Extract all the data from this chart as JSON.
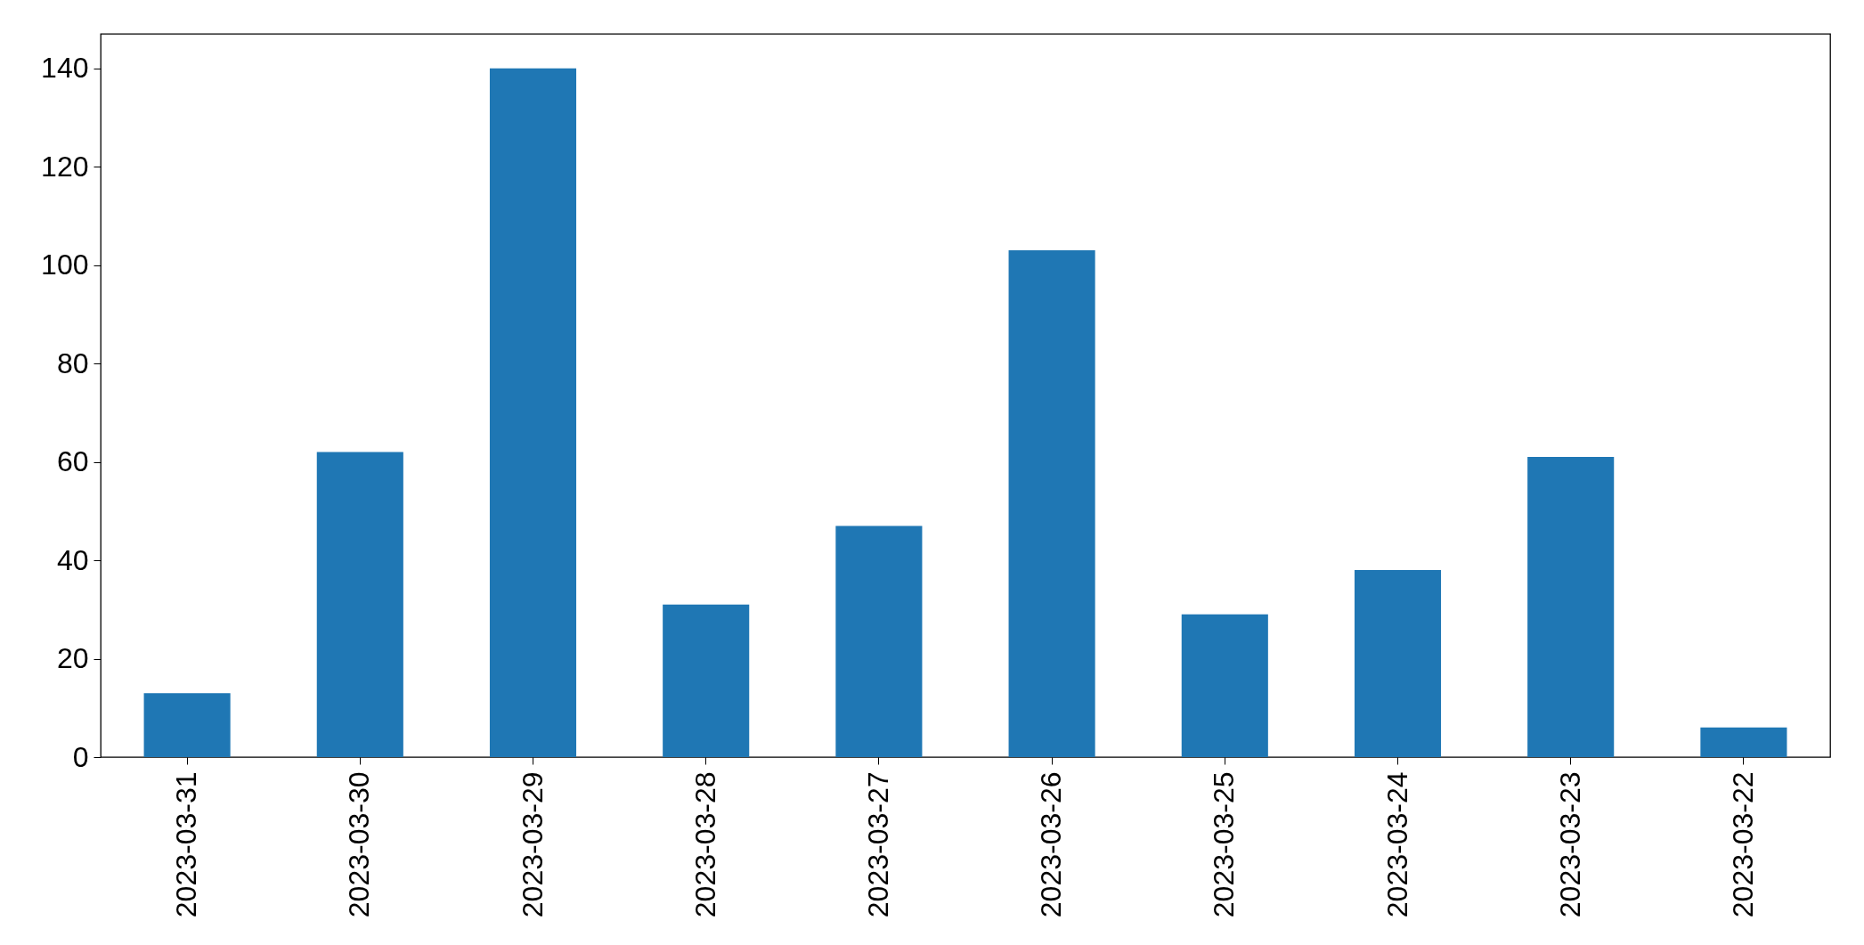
{
  "chart_data": {
    "type": "bar",
    "categories": [
      "2023-03-31",
      "2023-03-30",
      "2023-03-29",
      "2023-03-28",
      "2023-03-27",
      "2023-03-26",
      "2023-03-25",
      "2023-03-24",
      "2023-03-23",
      "2023-03-22"
    ],
    "values": [
      13,
      62,
      140,
      31,
      47,
      103,
      29,
      38,
      61,
      6
    ],
    "color": "#1f77b4",
    "ylim": [
      0,
      147
    ],
    "yticks": [
      0,
      20,
      40,
      60,
      80,
      100,
      120,
      140
    ],
    "grid": false
  }
}
